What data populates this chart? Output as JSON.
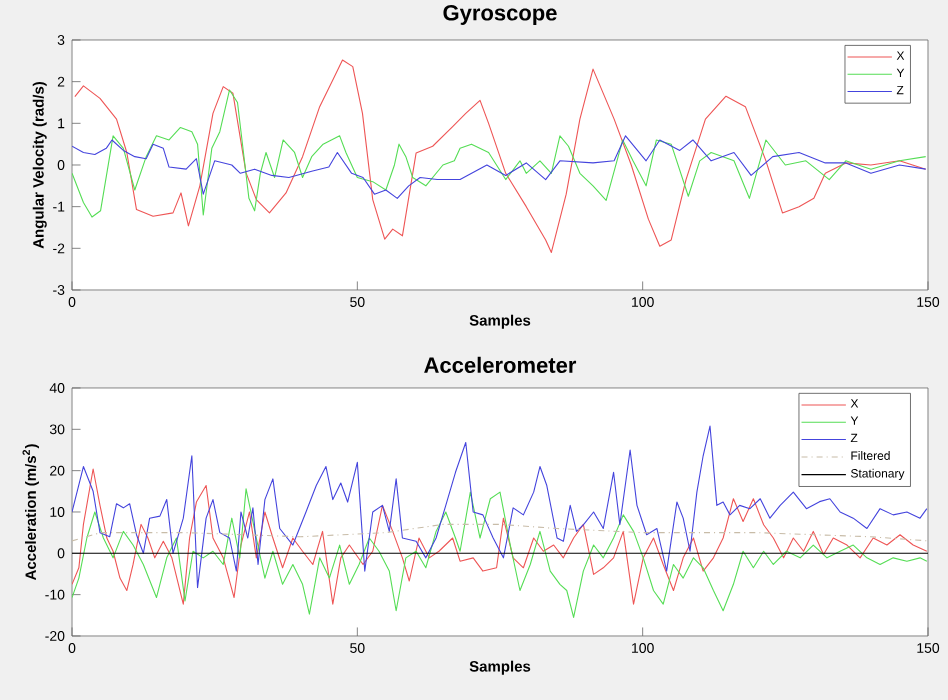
{
  "chart_data": [
    {
      "type": "line",
      "title": "Gyroscope",
      "xlabel": "Samples",
      "ylabel": "Angular Velocity (rad/s)",
      "xlim": [
        0,
        150
      ],
      "xticks": [
        0,
        50,
        100,
        150
      ],
      "ylim": [
        -3,
        3
      ],
      "yticks": [
        -3,
        -2,
        -1,
        0,
        1,
        2,
        3
      ],
      "legend": "top right",
      "series": [
        {
          "name": "X",
          "color": "#ee5555",
          "x": [
            0.5,
            2,
            4.9,
            7.8,
            9.6,
            11.3,
            14.2,
            17.7,
            19.1,
            20.4,
            22.4,
            24.7,
            26.5,
            28.2,
            30.5,
            32.3,
            34.6,
            37.5,
            40.4,
            43.4,
            45.7,
            47.4,
            49.2,
            50.9,
            52.7,
            54.8,
            56.2,
            57.9,
            60.3,
            63.2,
            66.7,
            69,
            71.5,
            73,
            76,
            79.6,
            83,
            84,
            86.6,
            89,
            91.3,
            95,
            98,
            101,
            103,
            105,
            107.6,
            111,
            114.6,
            118,
            121.6,
            124.5,
            127.4,
            130,
            132,
            135.6,
            140,
            145,
            149.6
          ],
          "values": [
            1.64,
            1.9,
            1.6,
            1.1,
            0.3,
            -1.07,
            -1.23,
            -1.15,
            -0.67,
            -1.46,
            -0.5,
            1.24,
            1.88,
            1.72,
            -0.19,
            -0.83,
            -1.15,
            -0.67,
            0.2,
            1.4,
            2.04,
            2.52,
            2.36,
            1.24,
            -0.83,
            -1.78,
            -1.54,
            -1.7,
            0.29,
            0.45,
            0.92,
            1.24,
            1.55,
            1.0,
            -0.2,
            -1.0,
            -1.8,
            -2.1,
            -0.7,
            1.1,
            2.3,
            1.1,
            0,
            -1.3,
            -1.95,
            -1.8,
            -0.35,
            1.1,
            1.65,
            1.4,
            0.1,
            -1.15,
            -1.0,
            -0.8,
            -0.2,
            0.05,
            0,
            0.1,
            -0.1
          ]
        },
        {
          "name": "Y",
          "color": "#55dd55",
          "x": [
            0,
            2,
            3.5,
            5,
            7.2,
            9,
            11,
            13,
            14.8,
            17,
            19,
            21,
            22,
            23,
            24.5,
            25.9,
            27.6,
            29,
            31,
            32,
            33,
            34,
            35.5,
            37,
            39,
            40.4,
            42,
            44,
            46.9,
            48,
            50,
            52.7,
            55,
            56.5,
            57.3,
            58.5,
            59.7,
            62,
            65,
            67,
            68,
            70,
            73,
            76,
            78.5,
            79.6,
            82,
            84,
            85.5,
            87,
            89,
            91.3,
            93.6,
            95.4,
            96.5,
            98.3,
            100.6,
            102.4,
            105,
            108,
            110,
            112,
            116,
            118.7,
            121.6,
            125,
            128.6,
            132.7,
            135.6,
            140,
            145,
            149.6
          ],
          "values": [
            -0.2,
            -0.9,
            -1.25,
            -1.1,
            0.7,
            0.4,
            -0.6,
            0.2,
            0.7,
            0.6,
            0.9,
            0.8,
            0.5,
            -1.2,
            0.4,
            0.8,
            1.8,
            1.5,
            -0.8,
            -1.1,
            -0.2,
            0.3,
            -0.3,
            0.6,
            0.3,
            -0.3,
            0.2,
            0.5,
            0.7,
            0.3,
            -0.3,
            -0.4,
            -0.6,
            0,
            0.5,
            0.2,
            -0.3,
            -0.5,
            0,
            0.1,
            0.4,
            0.5,
            0.3,
            -0.35,
            0.1,
            -0.2,
            0.1,
            -0.2,
            0.7,
            0.45,
            -0.2,
            -0.5,
            -0.85,
            0.05,
            0.6,
            0.1,
            -0.5,
            0.6,
            0.5,
            -0.75,
            0.1,
            0.3,
            0.1,
            -0.8,
            0.6,
            0,
            0.1,
            -0.35,
            0.1,
            -0.1,
            0.1,
            0.2
          ]
        },
        {
          "name": "Z",
          "color": "#4444dd",
          "x": [
            0,
            2,
            4,
            6,
            7,
            9,
            11,
            13,
            14.2,
            16,
            17,
            20,
            21.8,
            23,
            25,
            28,
            29.5,
            32,
            35,
            38,
            42,
            45,
            46.5,
            49,
            51,
            53,
            55,
            57,
            59,
            61,
            64,
            68,
            72.7,
            76,
            79.6,
            83,
            85.5,
            91.3,
            95,
            97,
            100.6,
            103,
            106.5,
            108.8,
            112,
            116,
            119,
            122.8,
            127.4,
            132,
            135.6,
            140,
            145,
            149.6
          ],
          "values": [
            0.45,
            0.3,
            0.25,
            0.4,
            0.6,
            0.35,
            0.2,
            0.15,
            0.5,
            0.4,
            -0.05,
            -0.1,
            0.15,
            -0.7,
            0.1,
            0,
            -0.2,
            -0.1,
            -0.25,
            -0.3,
            -0.15,
            -0.05,
            0.3,
            -0.2,
            -0.3,
            -0.7,
            -0.6,
            -0.8,
            -0.5,
            -0.3,
            -0.35,
            -0.35,
            0,
            -0.25,
            0.05,
            -0.35,
            0.1,
            0.05,
            0.1,
            0.7,
            0.1,
            0.6,
            0.35,
            0.6,
            0.1,
            0.3,
            -0.25,
            0.2,
            0.3,
            0.05,
            0.05,
            -0.2,
            0,
            -0.1
          ]
        }
      ]
    },
    {
      "type": "line",
      "title": "Accelerometer",
      "xlabel": "Samples",
      "ylabel": "Acceleration (m/s$^{2}$)",
      "xlim": [
        0,
        150
      ],
      "xticks": [
        0,
        50,
        100,
        150
      ],
      "ylim": [
        -20,
        40
      ],
      "yticks": [
        -20,
        -10,
        0,
        10,
        20,
        30,
        40
      ],
      "legend": "top right",
      "series": [
        {
          "name": "X",
          "color": "#ee5555",
          "x": [
            0,
            1.2,
            2,
            3.7,
            4.9,
            6.1,
            7.2,
            8.4,
            9.6,
            10.7,
            12.1,
            13.3,
            14.5,
            16,
            17.5,
            19.5,
            20.6,
            21.8,
            23.5,
            24.7,
            26.5,
            28.4,
            29.6,
            31.1,
            32.3,
            33.8,
            35.2,
            36.9,
            38.7,
            40.4,
            42.2,
            43.9,
            45.7,
            47.1,
            48.6,
            51,
            52.7,
            54.4,
            56.2,
            57.9,
            59.1,
            60.8,
            62.6,
            64.3,
            66.7,
            68,
            70.3,
            72,
            74.4,
            75.6,
            77.3,
            79.1,
            80.9,
            82.6,
            84.4,
            86.1,
            87.9,
            89.6,
            91.4,
            93.1,
            94.9,
            96.6,
            98.4,
            100.1,
            101.9,
            103.6,
            105.4,
            107.1,
            108.9,
            110.6,
            112.4,
            114.1,
            115.9,
            117.6,
            119.4,
            121.2,
            122.9,
            124.7,
            126.4,
            128.2,
            129.9,
            131.7,
            133.4,
            135.8,
            138.1,
            140.4,
            142.8,
            145.1,
            147.4,
            149.8
          ],
          "values": [
            -7.5,
            -3.5,
            7,
            20.4,
            11.6,
            3.7,
            0.5,
            -6,
            -9,
            -2.7,
            7,
            3.7,
            -1.1,
            2.9,
            -1.1,
            -12.3,
            3.7,
            12.4,
            16.4,
            3.7,
            -1.1,
            -10.7,
            2,
            10,
            -1.1,
            10,
            3.7,
            -3.5,
            3.7,
            0.5,
            -2.7,
            5.3,
            -12.3,
            -1.1,
            2,
            -2.7,
            0.5,
            11.6,
            5.3,
            -1.1,
            -6.7,
            3.7,
            -1.1,
            0.5,
            3.7,
            -1.9,
            -1.1,
            -4.3,
            -3.5,
            8.5,
            -1.1,
            -3.5,
            3.7,
            0.5,
            2,
            -1.1,
            3.7,
            7,
            -5.1,
            -3.5,
            -1.1,
            5.3,
            -12.3,
            -1.1,
            3.7,
            -2.7,
            -9,
            -1.1,
            3.7,
            -4.3,
            -1.1,
            3.7,
            13.2,
            7.7,
            13.2,
            6.9,
            3.7,
            -1.1,
            3.7,
            0.5,
            5.3,
            -0.3,
            3.7,
            2,
            -1.1,
            3.7,
            2,
            4.5,
            2,
            0.5
          ]
        },
        {
          "name": "Y",
          "color": "#55dd55",
          "x": [
            0,
            1.2,
            2.6,
            4,
            5.5,
            7.2,
            9,
            10.7,
            12.5,
            14.8,
            16.6,
            18.3,
            19.8,
            21.2,
            23,
            24.7,
            26.5,
            28,
            29.4,
            30.5,
            32.3,
            33.8,
            35.2,
            36.9,
            38.7,
            40.4,
            41.6,
            43.4,
            45.1,
            46.9,
            48.6,
            50.3,
            52.1,
            53.8,
            55.6,
            56.8,
            58.5,
            60.3,
            62,
            63.8,
            65.5,
            67.2,
            68,
            69.8,
            71.5,
            73.3,
            75,
            76.8,
            78.5,
            80.3,
            82,
            83.8,
            85.5,
            86.7,
            87.9,
            89.6,
            91.4,
            93.1,
            94.9,
            96.6,
            98.4,
            100.1,
            101.9,
            103.6,
            105.4,
            107.1,
            108.9,
            110.6,
            112.4,
            114.1,
            115.9,
            117.6,
            119.4,
            121.2,
            122.9,
            125.2,
            127.6,
            129.9,
            132.3,
            134.6,
            136.9,
            139.3,
            141.6,
            143.9,
            146.3,
            148.6,
            149.8
          ],
          "values": [
            -10.7,
            -6,
            3.7,
            10,
            3.7,
            -1.1,
            5.3,
            2,
            -2.7,
            -10.7,
            -1.1,
            3.7,
            -11.5,
            0.5,
            -1.1,
            0.5,
            -2.7,
            8.5,
            -1.1,
            15.6,
            3.7,
            -6,
            0.5,
            -7.5,
            -2.7,
            -7.5,
            -14.7,
            -1.1,
            -6,
            2,
            -7.5,
            -2.7,
            3.7,
            0.5,
            -4.3,
            -13.9,
            -1.1,
            0.5,
            -3.5,
            5.3,
            10,
            3.7,
            0.5,
            14.8,
            3.7,
            13.2,
            14.8,
            2,
            -9,
            -2.7,
            5.3,
            -4.3,
            -7.5,
            -9,
            -15.5,
            -4.3,
            2,
            -1.1,
            3.7,
            9.3,
            5.3,
            -1.1,
            -9,
            -12.3,
            -2.7,
            -6,
            -1.1,
            -3.5,
            -9,
            -13.9,
            -7.5,
            0.5,
            -3.5,
            0.5,
            -2.7,
            0.5,
            -1.1,
            2,
            -1.1,
            0.5,
            2,
            -1.1,
            -2.7,
            -1.1,
            -1.9,
            -1.1,
            -1.9
          ]
        },
        {
          "name": "Z",
          "color": "#4444dd",
          "x": [
            0,
            2,
            3.7,
            4.9,
            6.6,
            7.8,
            9,
            10.1,
            11.3,
            12.5,
            13.6,
            15.4,
            16.6,
            17.7,
            19.5,
            21,
            22,
            23.5,
            24.7,
            25.9,
            27.6,
            28.8,
            29.6,
            30.8,
            31.7,
            32.6,
            33.8,
            35.2,
            36.4,
            38.7,
            41,
            42.8,
            44.5,
            45.7,
            47.1,
            48.3,
            50,
            51.3,
            52.7,
            54.4,
            55.6,
            56.8,
            57.9,
            60.3,
            62,
            63.8,
            65.5,
            67.2,
            69,
            70.3,
            72,
            73.8,
            75.6,
            77.3,
            79.1,
            80.9,
            82,
            83.2,
            85,
            86.1,
            87.3,
            88.4,
            89.6,
            91.4,
            93.1,
            94.9,
            96,
            97.8,
            99,
            100.7,
            102.5,
            104.2,
            106,
            107.1,
            108.3,
            109.5,
            110.6,
            111.8,
            113,
            114.1,
            115.3,
            117,
            118.8,
            120.6,
            122.3,
            124.1,
            126.4,
            128.7,
            131,
            132.8,
            134.6,
            136.9,
            139.3,
            141.6,
            143.9,
            146.3,
            148.6,
            149.8
          ],
          "values": [
            10,
            21,
            15,
            5,
            4,
            12,
            11,
            12,
            4.5,
            0,
            8.5,
            9,
            13,
            0,
            8.5,
            23.6,
            -8.3,
            8.5,
            13,
            5,
            3.7,
            -4.3,
            10,
            3.7,
            11,
            -2.7,
            13,
            18,
            6,
            2,
            10,
            16.4,
            21,
            13,
            17,
            12.4,
            22,
            -4.3,
            10,
            11.6,
            5.3,
            18,
            3.7,
            2.9,
            -1.1,
            3.7,
            11.6,
            19.6,
            26.8,
            10,
            9.3,
            3.7,
            -1.1,
            11,
            9.3,
            14.8,
            21,
            16.4,
            3.7,
            2.9,
            11.6,
            5.3,
            6.9,
            10,
            6,
            19.6,
            6.9,
            25,
            11.6,
            4.5,
            6,
            -4.3,
            12.4,
            8.5,
            0.5,
            14.8,
            23.6,
            30.8,
            11.6,
            12.4,
            9.3,
            11.6,
            10.8,
            13.2,
            8.5,
            11.6,
            14.8,
            10.8,
            12.5,
            13.2,
            10,
            8.5,
            6,
            10.8,
            9.3,
            10,
            8.5,
            10.8
          ]
        },
        {
          "name": "Filtered",
          "color": "#c8bca8",
          "line_style": "dashed",
          "x": [
            0,
            5,
            20,
            40,
            55,
            65,
            75,
            85,
            100,
            120,
            140,
            150
          ],
          "values": [
            3,
            5,
            5,
            4,
            5,
            7,
            7,
            6,
            5,
            5,
            4,
            3
          ]
        },
        {
          "name": "Stationary",
          "color": "#000000",
          "x": [
            0,
            150
          ],
          "values": [
            0,
            0
          ]
        }
      ]
    }
  ]
}
